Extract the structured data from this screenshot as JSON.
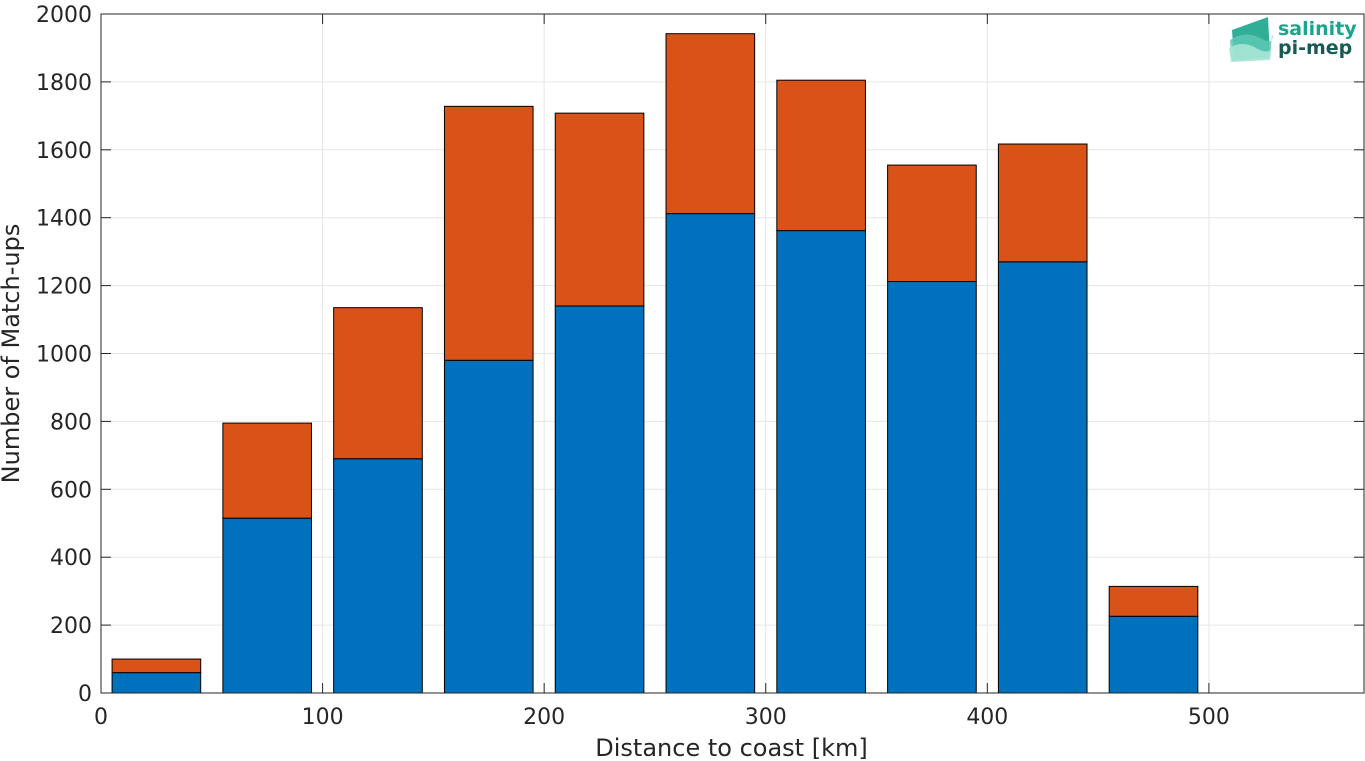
{
  "chart_data": {
    "type": "bar",
    "stacked": true,
    "title": "",
    "xlabel": "Distance to coast [km]",
    "ylabel": "Number of Match-ups",
    "xlim": [
      0,
      570
    ],
    "ylim": [
      0,
      2000
    ],
    "xticks": [
      0,
      100,
      200,
      300,
      400,
      500
    ],
    "yticks": [
      0,
      200,
      400,
      600,
      800,
      1000,
      1200,
      1400,
      1600,
      1800,
      2000
    ],
    "grid": true,
    "bin_width": 40,
    "x": [
      25,
      75,
      125,
      175,
      225,
      275,
      325,
      375,
      425,
      475
    ],
    "series": [
      {
        "color": "#0072BD",
        "values": [
          60,
          515,
          690,
          980,
          1140,
          1412,
          1362,
          1212,
          1270,
          226
        ]
      },
      {
        "color": "#D95319",
        "values": [
          40,
          280,
          445,
          748,
          568,
          530,
          443,
          343,
          347,
          88
        ]
      }
    ]
  },
  "logo": {
    "line1": "salinity",
    "line2": "pi-mep",
    "colors": [
      "#1aa58d",
      "#5cc9b4",
      "#a8e4d6"
    ]
  }
}
